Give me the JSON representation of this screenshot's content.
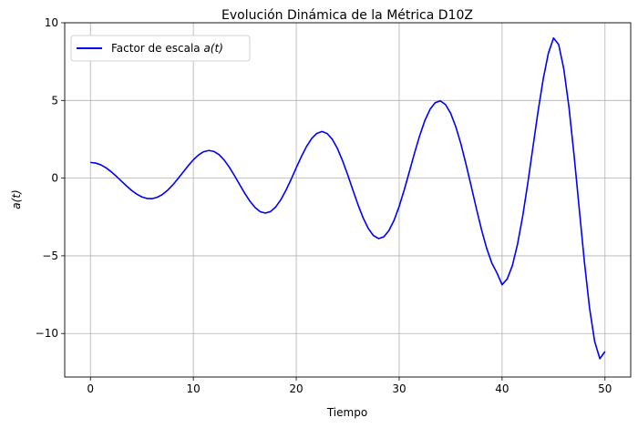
{
  "chart_data": {
    "type": "line",
    "title": "Evolución Dinámica de la Métrica D10Z",
    "xlabel": "Tiempo",
    "ylabel": "a(t)",
    "xlim": [
      -2.5,
      52.5
    ],
    "ylim": [
      -12.8,
      10.0
    ],
    "xticks": [
      0,
      10,
      20,
      30,
      40,
      50
    ],
    "xtick_labels": [
      "0",
      "10",
      "20",
      "30",
      "40",
      "50"
    ],
    "yticks": [
      10,
      5,
      0,
      -5,
      -10
    ],
    "ytick_labels": [
      "10",
      "5",
      "0",
      "−5",
      "−10"
    ],
    "grid": true,
    "legend_position": "upper-left",
    "series": [
      {
        "name": "Factor de escala a(t)",
        "color": "#0000ff",
        "x": [
          0,
          0.5,
          1,
          1.5,
          2,
          2.5,
          3,
          3.5,
          4,
          4.5,
          5,
          5.5,
          6,
          6.5,
          7,
          7.5,
          8,
          8.5,
          9,
          9.5,
          10,
          10.5,
          11,
          11.5,
          12,
          12.5,
          13,
          13.5,
          14,
          14.5,
          15,
          15.5,
          16,
          16.5,
          17,
          17.5,
          18,
          18.5,
          19,
          19.5,
          20,
          20.5,
          21,
          21.5,
          22,
          22.5,
          23,
          23.5,
          24,
          24.5,
          25,
          25.5,
          26,
          26.5,
          27,
          27.5,
          28,
          28.5,
          29,
          29.5,
          30,
          30.5,
          31,
          31.5,
          32,
          32.5,
          33,
          33.5,
          34,
          34.5,
          35,
          35.5,
          36,
          36.5,
          37,
          37.5,
          38,
          38.5,
          39,
          39.5,
          40,
          40.5,
          41,
          41.5,
          42,
          42.5,
          43,
          43.5,
          44,
          44.5,
          45,
          45.5,
          46,
          46.5,
          47,
          47.5,
          48,
          48.5,
          49,
          49.5,
          50
        ],
        "y": [
          1.01,
          0.97,
          0.86,
          0.67,
          0.42,
          0.13,
          -0.19,
          -0.5,
          -0.79,
          -1.03,
          -1.21,
          -1.31,
          -1.32,
          -1.23,
          -1.05,
          -0.78,
          -0.44,
          -0.04,
          0.38,
          0.8,
          1.18,
          1.49,
          1.7,
          1.78,
          1.72,
          1.51,
          1.16,
          0.7,
          0.16,
          -0.42,
          -0.98,
          -1.49,
          -1.89,
          -2.16,
          -2.25,
          -2.15,
          -1.86,
          -1.39,
          -0.78,
          -0.08,
          0.67,
          1.39,
          2.04,
          2.55,
          2.88,
          3.0,
          2.87,
          2.5,
          1.91,
          1.12,
          0.21,
          -0.76,
          -1.71,
          -2.56,
          -3.24,
          -3.7,
          -3.89,
          -3.78,
          -3.38,
          -2.72,
          -1.82,
          -0.74,
          0.44,
          1.63,
          2.75,
          3.71,
          4.43,
          4.86,
          4.97,
          4.74,
          4.18,
          3.31,
          2.2,
          0.88,
          -0.52,
          -1.95,
          -3.31,
          -4.51,
          -5.46,
          -6.1,
          -6.86,
          -6.49,
          -5.63,
          -4.26,
          -2.46,
          -0.32,
          2.0,
          4.31,
          6.39,
          8.04,
          9.02,
          8.6,
          7.02,
          4.57,
          1.45,
          -1.98,
          -5.39,
          -8.36,
          -10.52,
          -11.62,
          -11.16
        ]
      }
    ]
  }
}
